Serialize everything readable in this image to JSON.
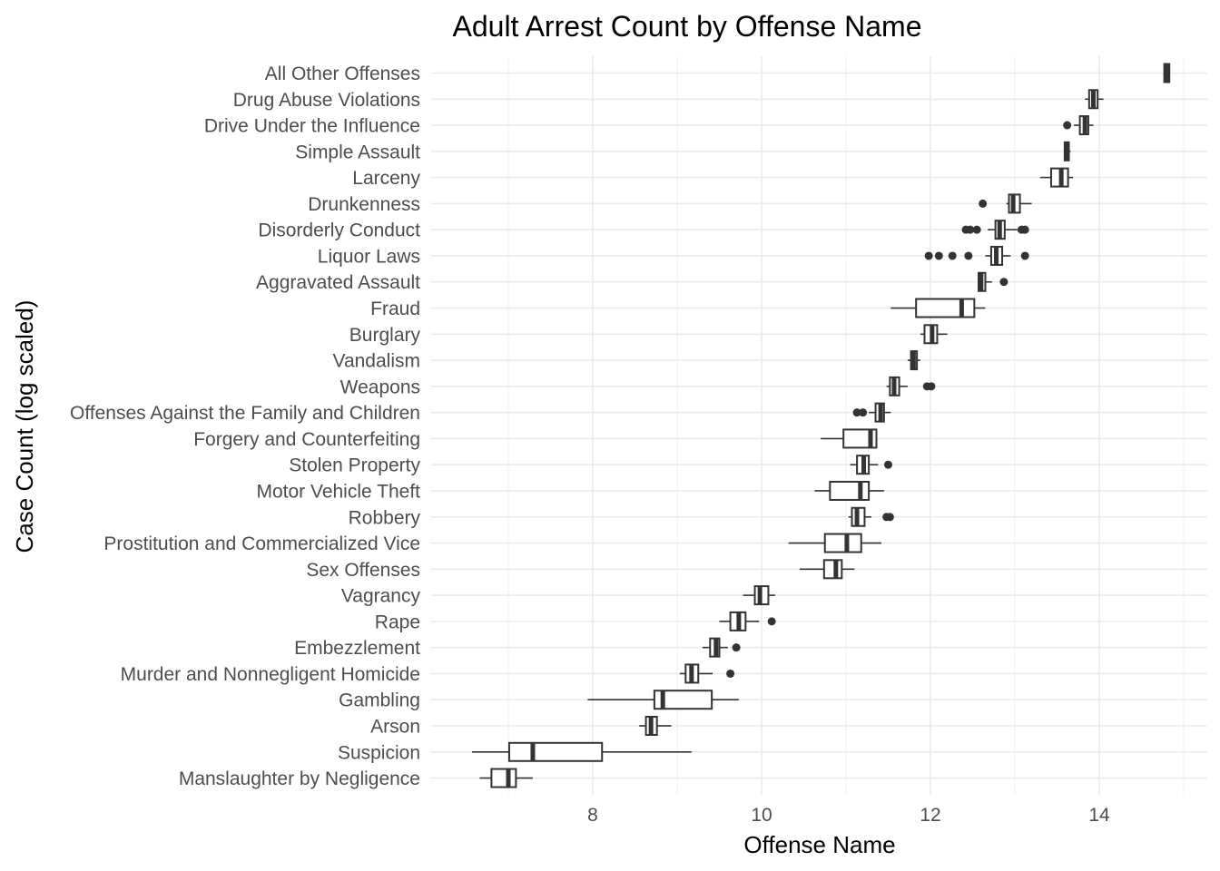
{
  "chart_data": {
    "type": "boxplot",
    "orientation": "horizontal",
    "title": "Adult Arrest Count by Offense Name",
    "xlabel": "Offense Name",
    "ylabel": "Case Count (log scaled)",
    "xlim": [
      6.2,
      15.35
    ],
    "x_ticks": [
      8,
      10,
      12,
      14
    ],
    "grid": true,
    "legend": "none",
    "series": [
      {
        "category": "All Other Offenses",
        "min": 14.77,
        "q1": 14.77,
        "median": 14.8,
        "q3": 14.83,
        "max": 14.83,
        "outliers": []
      },
      {
        "category": "Drug Abuse Violations",
        "min": 13.83,
        "q1": 13.88,
        "median": 13.93,
        "q3": 13.98,
        "max": 14.05,
        "outliers": []
      },
      {
        "category": "Drive Under the Influence",
        "min": 13.7,
        "q1": 13.77,
        "median": 13.83,
        "q3": 13.87,
        "max": 13.93,
        "outliers": [
          13.62
        ]
      },
      {
        "category": "Simple Assault",
        "min": 13.58,
        "q1": 13.59,
        "median": 13.61,
        "q3": 13.64,
        "max": 13.66,
        "outliers": []
      },
      {
        "category": "Larceny",
        "min": 13.3,
        "q1": 13.43,
        "median": 13.55,
        "q3": 13.63,
        "max": 13.69,
        "outliers": []
      },
      {
        "category": "Drunkenness",
        "min": 12.9,
        "q1": 12.93,
        "median": 12.98,
        "q3": 13.06,
        "max": 13.2,
        "outliers": [
          12.62
        ]
      },
      {
        "category": "Disorderly Conduct",
        "min": 12.68,
        "q1": 12.77,
        "median": 12.82,
        "q3": 12.88,
        "max": 13.03,
        "outliers": [
          12.42,
          12.47,
          12.55,
          13.08,
          13.12
        ]
      },
      {
        "category": "Liquor Laws",
        "min": 12.65,
        "q1": 12.72,
        "median": 12.78,
        "q3": 12.85,
        "max": 12.95,
        "outliers": [
          11.98,
          12.1,
          12.26,
          12.45,
          13.12
        ]
      },
      {
        "category": "Aggravated Assault",
        "min": 12.56,
        "q1": 12.57,
        "median": 12.6,
        "q3": 12.65,
        "max": 12.73,
        "outliers": [
          12.87
        ]
      },
      {
        "category": "Fraud",
        "min": 11.53,
        "q1": 11.83,
        "median": 12.37,
        "q3": 12.52,
        "max": 12.65,
        "outliers": []
      },
      {
        "category": "Burglary",
        "min": 11.88,
        "q1": 11.93,
        "median": 12.02,
        "q3": 12.08,
        "max": 12.2,
        "outliers": []
      },
      {
        "category": "Vandalism",
        "min": 11.73,
        "q1": 11.77,
        "median": 11.8,
        "q3": 11.84,
        "max": 11.88,
        "outliers": []
      },
      {
        "category": "Weapons",
        "min": 11.48,
        "q1": 11.52,
        "median": 11.57,
        "q3": 11.63,
        "max": 11.73,
        "outliers": [
          11.96,
          12.01
        ]
      },
      {
        "category": "Offenses Against the Family and Children",
        "min": 11.27,
        "q1": 11.35,
        "median": 11.41,
        "q3": 11.45,
        "max": 11.53,
        "outliers": [
          11.13,
          11.2
        ]
      },
      {
        "category": "Forgery and Counterfeiting",
        "min": 10.7,
        "q1": 10.97,
        "median": 11.29,
        "q3": 11.36,
        "max": 11.37,
        "outliers": []
      },
      {
        "category": "Stolen Property",
        "min": 11.05,
        "q1": 11.13,
        "median": 11.21,
        "q3": 11.27,
        "max": 11.38,
        "outliers": [
          11.5
        ]
      },
      {
        "category": "Motor Vehicle Theft",
        "min": 10.63,
        "q1": 10.81,
        "median": 11.17,
        "q3": 11.27,
        "max": 11.45,
        "outliers": []
      },
      {
        "category": "Robbery",
        "min": 11.03,
        "q1": 11.07,
        "median": 11.13,
        "q3": 11.22,
        "max": 11.3,
        "outliers": [
          11.48,
          11.52
        ]
      },
      {
        "category": "Prostitution and Commercialized Vice",
        "min": 10.32,
        "q1": 10.75,
        "median": 11.01,
        "q3": 11.18,
        "max": 11.42,
        "outliers": []
      },
      {
        "category": "Sex Offenses",
        "min": 10.45,
        "q1": 10.74,
        "median": 10.88,
        "q3": 10.95,
        "max": 11.1,
        "outliers": []
      },
      {
        "category": "Vagrancy",
        "min": 9.78,
        "q1": 9.92,
        "median": 9.98,
        "q3": 10.08,
        "max": 10.16,
        "outliers": []
      },
      {
        "category": "Rape",
        "min": 9.5,
        "q1": 9.63,
        "median": 9.73,
        "q3": 9.81,
        "max": 9.97,
        "outliers": [
          10.12
        ]
      },
      {
        "category": "Embezzlement",
        "min": 9.3,
        "q1": 9.39,
        "median": 9.46,
        "q3": 9.5,
        "max": 9.6,
        "outliers": [
          9.7
        ]
      },
      {
        "category": "Murder and Nonnegligent Homicide",
        "min": 9.03,
        "q1": 9.1,
        "median": 9.17,
        "q3": 9.25,
        "max": 9.42,
        "outliers": [
          9.63
        ]
      },
      {
        "category": "Gambling",
        "min": 7.94,
        "q1": 8.73,
        "median": 8.83,
        "q3": 9.41,
        "max": 9.73,
        "outliers": []
      },
      {
        "category": "Arson",
        "min": 8.55,
        "q1": 8.63,
        "median": 8.69,
        "q3": 8.76,
        "max": 8.93,
        "outliers": []
      },
      {
        "category": "Suspicion",
        "min": 6.57,
        "q1": 7.01,
        "median": 7.29,
        "q3": 8.11,
        "max": 9.17,
        "outliers": []
      },
      {
        "category": "Manslaughter by Negligence",
        "min": 6.66,
        "q1": 6.8,
        "median": 7.0,
        "q3": 7.09,
        "max": 7.29,
        "outliers": []
      }
    ]
  }
}
